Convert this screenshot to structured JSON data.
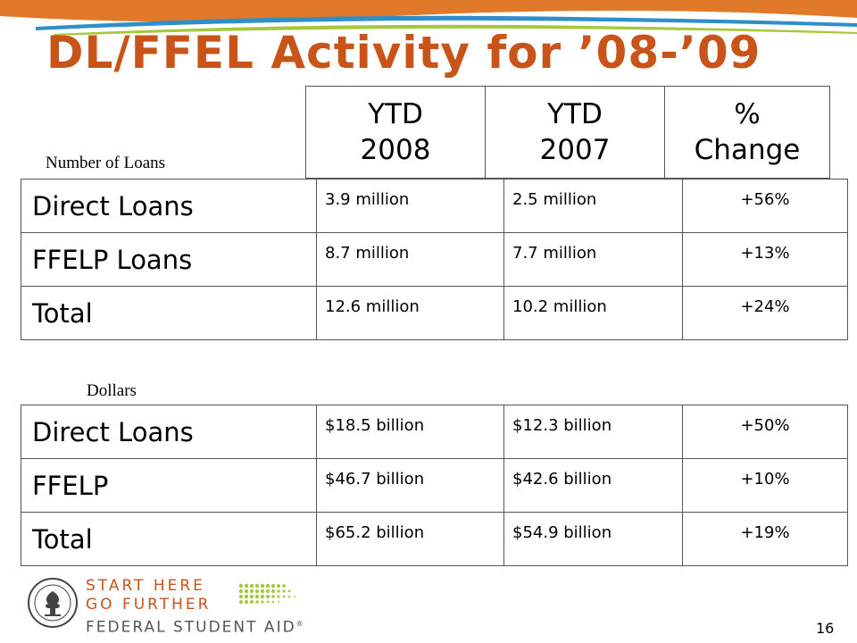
{
  "slide": {
    "title": "DL/FFEL Activity for ’08-’09",
    "page_number": "16"
  },
  "header": {
    "col1_line1": "YTD",
    "col1_line2": "2008",
    "col2_line1": "YTD",
    "col2_line2": "2007",
    "col3_line1": "%",
    "col3_line2": "Change"
  },
  "loans_section": {
    "label": "Number of Loans",
    "rows": [
      {
        "name": "Direct Loans",
        "ytd2008": "3.9 million",
        "ytd2007": "2.5 million",
        "change": "+56%"
      },
      {
        "name": "FFELP Loans",
        "ytd2008": "8.7 million",
        "ytd2007": "7.7 million",
        "change": "+13%"
      },
      {
        "name": "Total",
        "ytd2008": "12.6 million",
        "ytd2007": "10.2 million",
        "change": "+24%"
      }
    ]
  },
  "dollars_section": {
    "label": "Dollars",
    "rows": [
      {
        "name": "Direct Loans",
        "ytd2008": "$18.5 billion",
        "ytd2007": "$12.3 billion",
        "change": "+50%"
      },
      {
        "name": "FFELP",
        "ytd2008": "$46.7 billion",
        "ytd2007": "$42.6 billion",
        "change": "+10%"
      },
      {
        "name": "Total",
        "ytd2008": "$65.2 billion",
        "ytd2007": "$54.9 billion",
        "change": "+19%"
      }
    ]
  },
  "footer": {
    "logo_line1": "START HERE",
    "logo_line2": "GO FURTHER",
    "logo_line3": "FEDERAL STUDENT AID",
    "logo_mark": "®"
  },
  "colors": {
    "title": "#c8541a",
    "swoosh_orange": "#e07a2a",
    "swoosh_blue": "#2f8fc9",
    "swoosh_green": "#a8c83c"
  }
}
